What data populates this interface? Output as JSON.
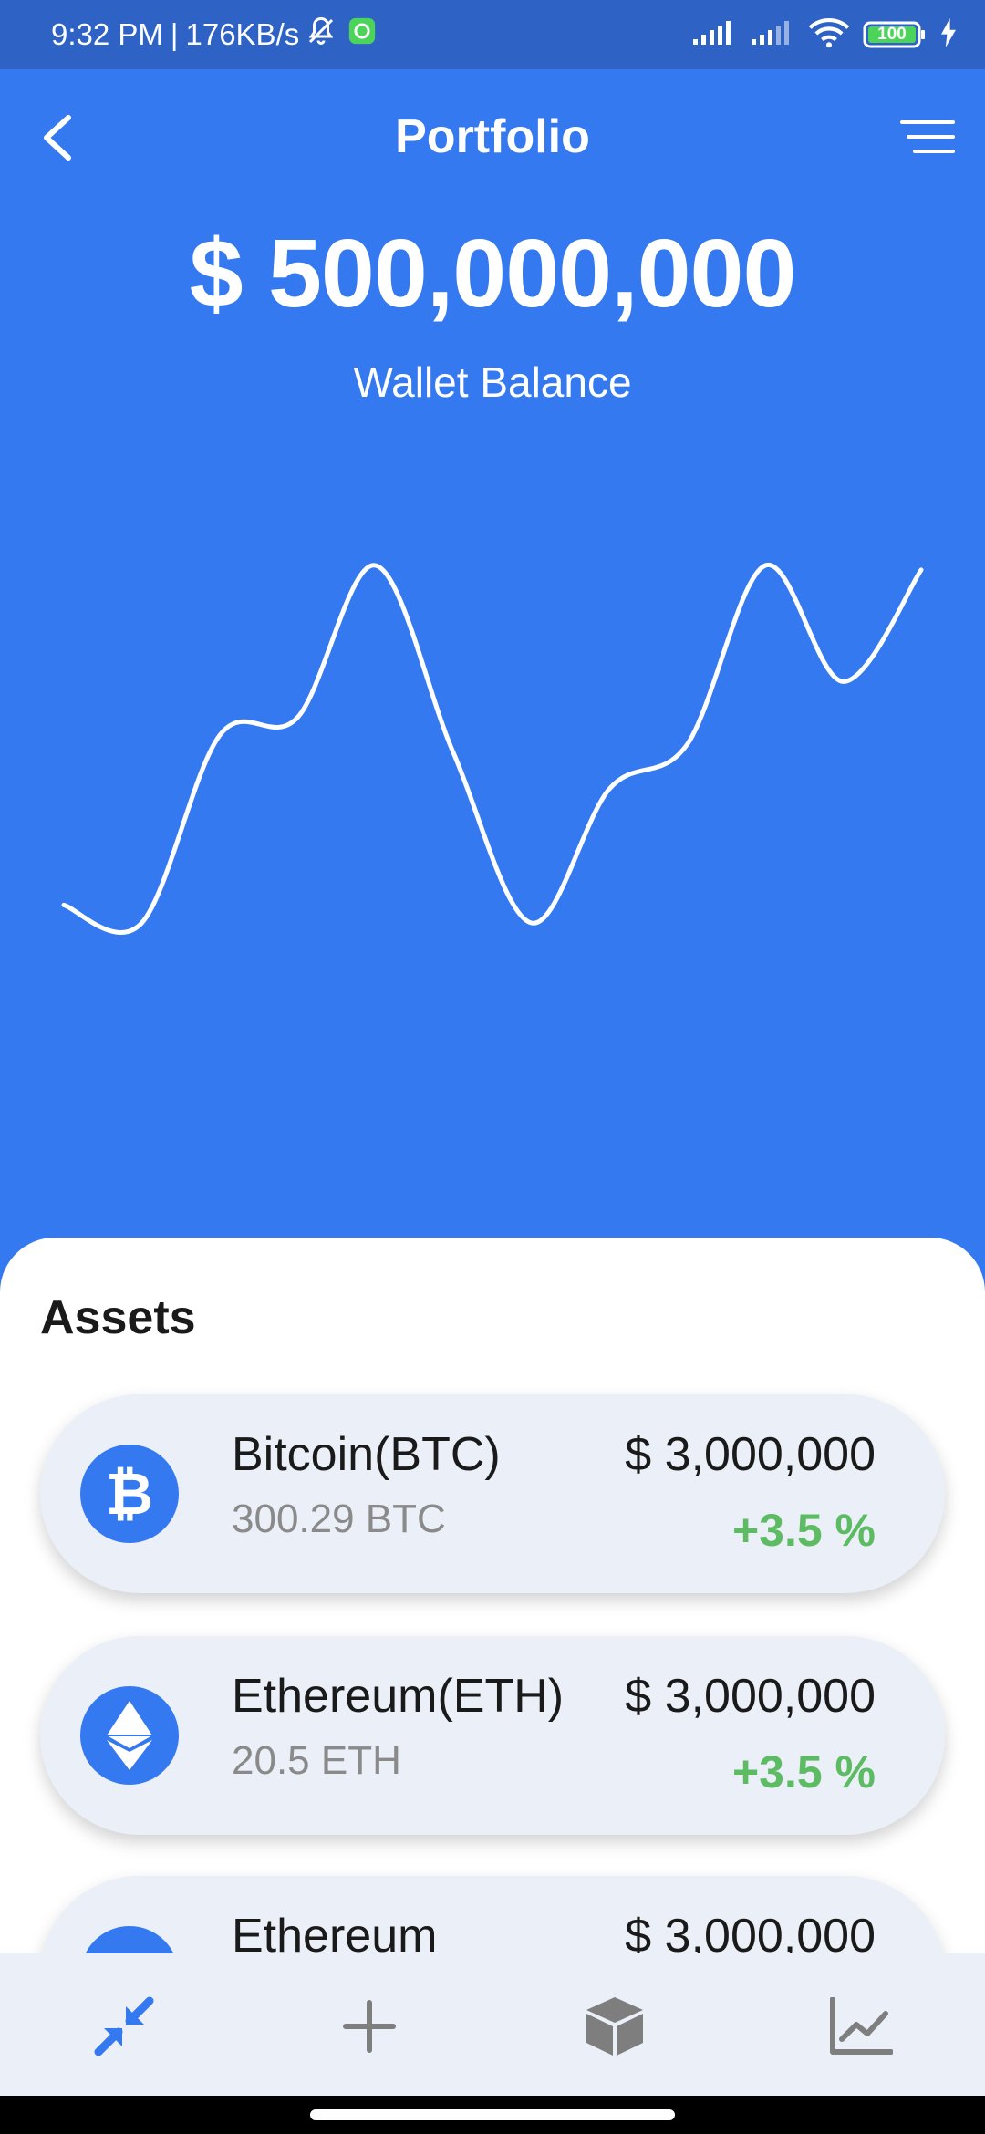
{
  "status_bar": {
    "time": "9:32 PM",
    "separator": "|",
    "speed": "176KB/s",
    "battery": "100",
    "icons": [
      "bell-off-icon",
      "app-notification-icon",
      "signal-icon",
      "signal-icon",
      "wifi-icon",
      "battery-icon",
      "charging-icon"
    ]
  },
  "header": {
    "title": "Portfolio",
    "back_icon": "chevron-left-icon",
    "menu_icon": "filter-menu-icon"
  },
  "wallet": {
    "balance": "$ 500,000,000",
    "label": "Wallet Balance"
  },
  "chart_data": {
    "type": "line",
    "values": [
      24,
      20,
      62,
      66,
      100,
      58,
      20,
      50,
      60,
      100,
      74,
      99
    ],
    "ylim": [
      0,
      100
    ],
    "color": "#FFFFFF",
    "title": "",
    "xlabel": "",
    "ylabel": "",
    "grid": false
  },
  "assets": {
    "title": "Assets",
    "items": [
      {
        "name": "Bitcoin(BTC)",
        "amount": "300.29 BTC",
        "value": "$ 3,000,000",
        "change": "+3.5 %",
        "icon": "bitcoin-icon"
      },
      {
        "name": "Ethereum(ETH)",
        "amount": "20.5 ETH",
        "value": "$ 3,000,000",
        "change": "+3.5 %",
        "icon": "ethereum-icon"
      },
      {
        "name": "Ethereum",
        "amount": "",
        "value": "$ 3,000,000",
        "change": "",
        "icon": "coin-icon"
      }
    ]
  },
  "bottom_nav": {
    "items": [
      "exchange-icon",
      "plus-icon",
      "cube-icon",
      "chart-line-icon"
    ],
    "active_color": "#3579F0",
    "inactive_color": "#7E7E7E"
  }
}
